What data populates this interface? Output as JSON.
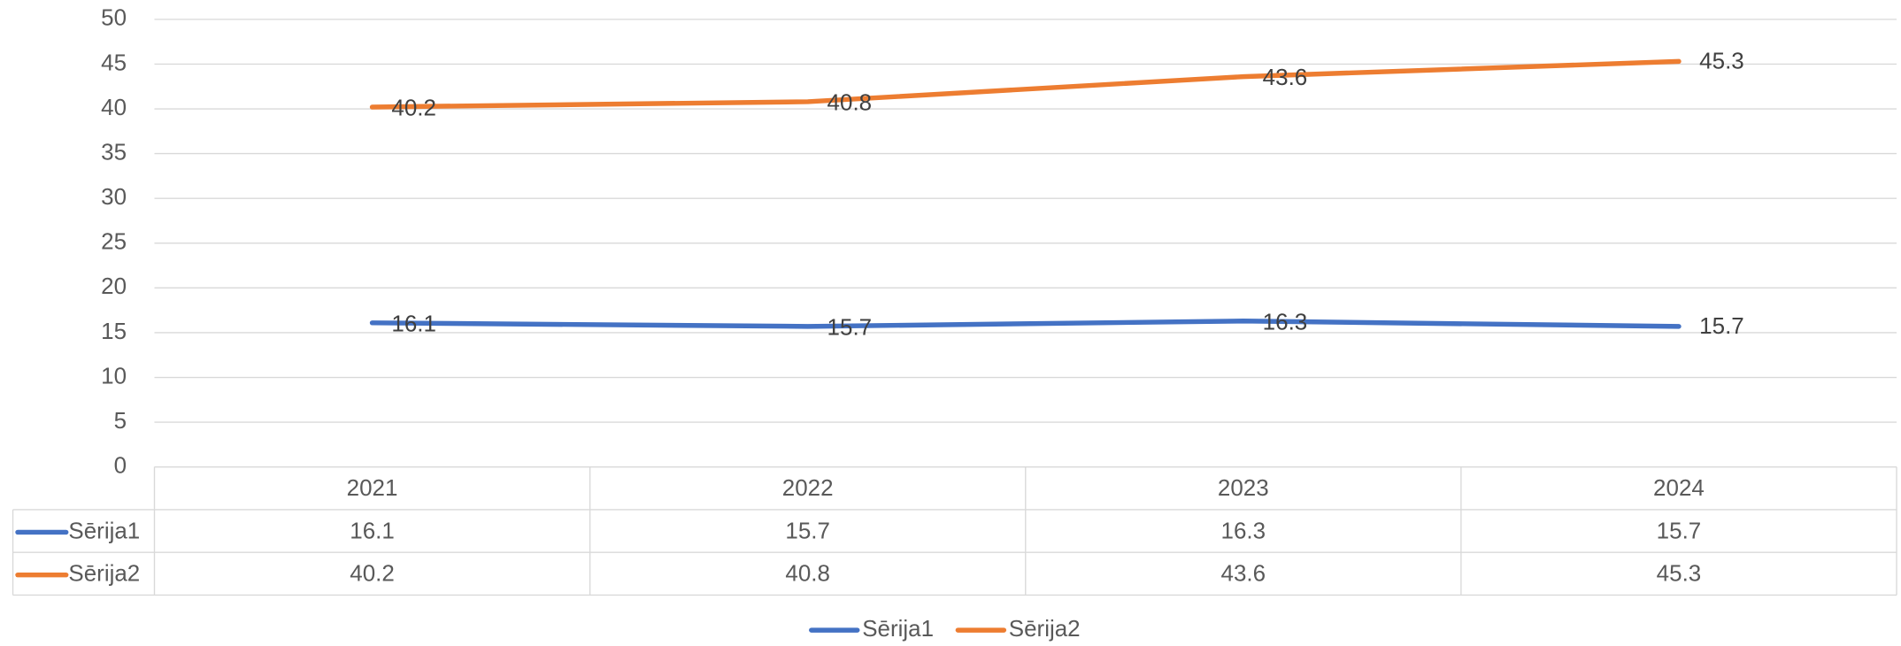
{
  "chart_data": {
    "type": "line",
    "categories": [
      "2021",
      "2022",
      "2023",
      "2024"
    ],
    "series": [
      {
        "name": "Sērija1",
        "color": "#4472c4",
        "values": [
          16.1,
          15.7,
          16.3,
          15.7
        ]
      },
      {
        "name": "Sērija2",
        "color": "#ed7d31",
        "values": [
          40.2,
          40.8,
          43.6,
          45.3
        ]
      }
    ],
    "ylim": [
      0,
      50
    ],
    "yticks": [
      0,
      5,
      10,
      15,
      20,
      25,
      30,
      35,
      40,
      45,
      50
    ],
    "grid": true,
    "data_labels": true,
    "data_table": true,
    "legend": "bottom"
  }
}
